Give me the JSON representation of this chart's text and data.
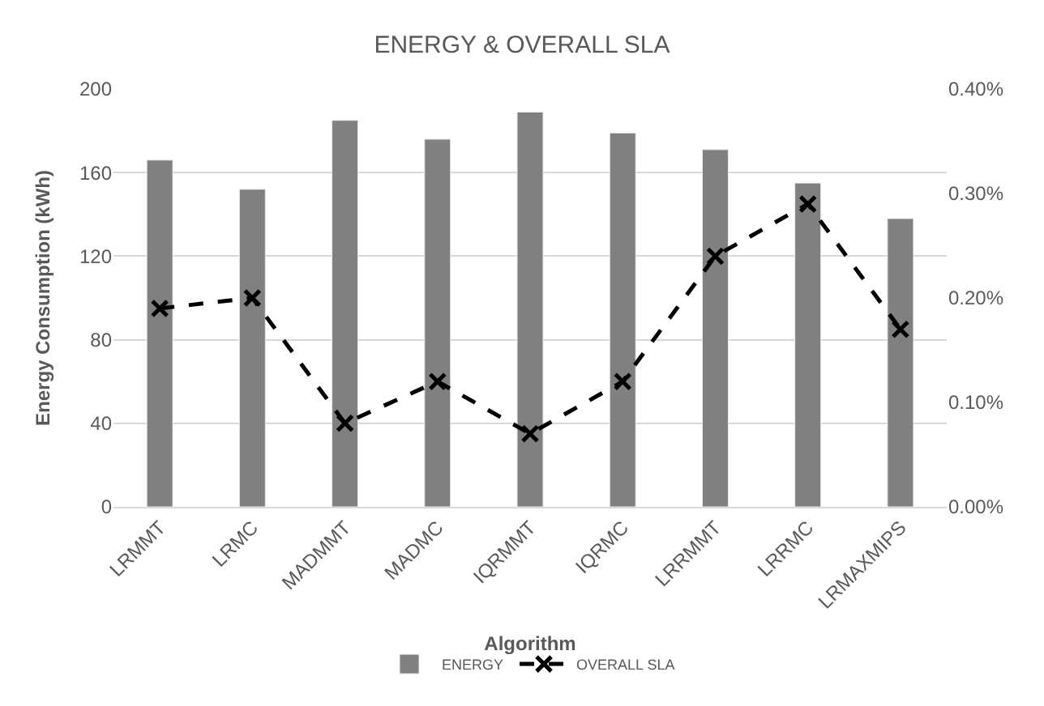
{
  "chart_data": {
    "type": "bar",
    "title": "ENERGY & OVERALL SLA",
    "xlabel": "Algorithm",
    "ylabel": "Energy Consumption (kWh)",
    "categories": [
      "LRMMT",
      "LRMC",
      "MADMMT",
      "MADMC",
      "IQRMMT",
      "IQRMC",
      "LRRMMT",
      "LRRMC",
      "LRMAXMIPS"
    ],
    "series": [
      {
        "name": "ENERGY",
        "color": "#808080",
        "values": [
          166,
          152,
          185,
          176,
          189,
          179,
          171,
          155,
          138
        ]
      },
      {
        "name": "OVERALL SLA",
        "type": "line",
        "axis": "y2",
        "color": "#000000",
        "marker": "cross",
        "line_style": "dashed",
        "values": [
          0.19,
          0.2,
          0.08,
          0.12,
          0.07,
          0.12,
          0.24,
          0.29,
          0.17
        ]
      }
    ],
    "ylim": [
      0,
      200
    ],
    "yticks": [
      0,
      40,
      80,
      120,
      160,
      200
    ],
    "y2lim": [
      0,
      0.4
    ],
    "y2ticks": [
      {
        "value": 0,
        "label": "0.00%"
      },
      {
        "value": 0.1,
        "label": "0.10%"
      },
      {
        "value": 0.2,
        "label": "0.20%"
      },
      {
        "value": 0.3,
        "label": "0.30%"
      },
      {
        "value": 0.4,
        "label": "0.40%"
      }
    ],
    "grid": "y",
    "legend": "bottom"
  }
}
